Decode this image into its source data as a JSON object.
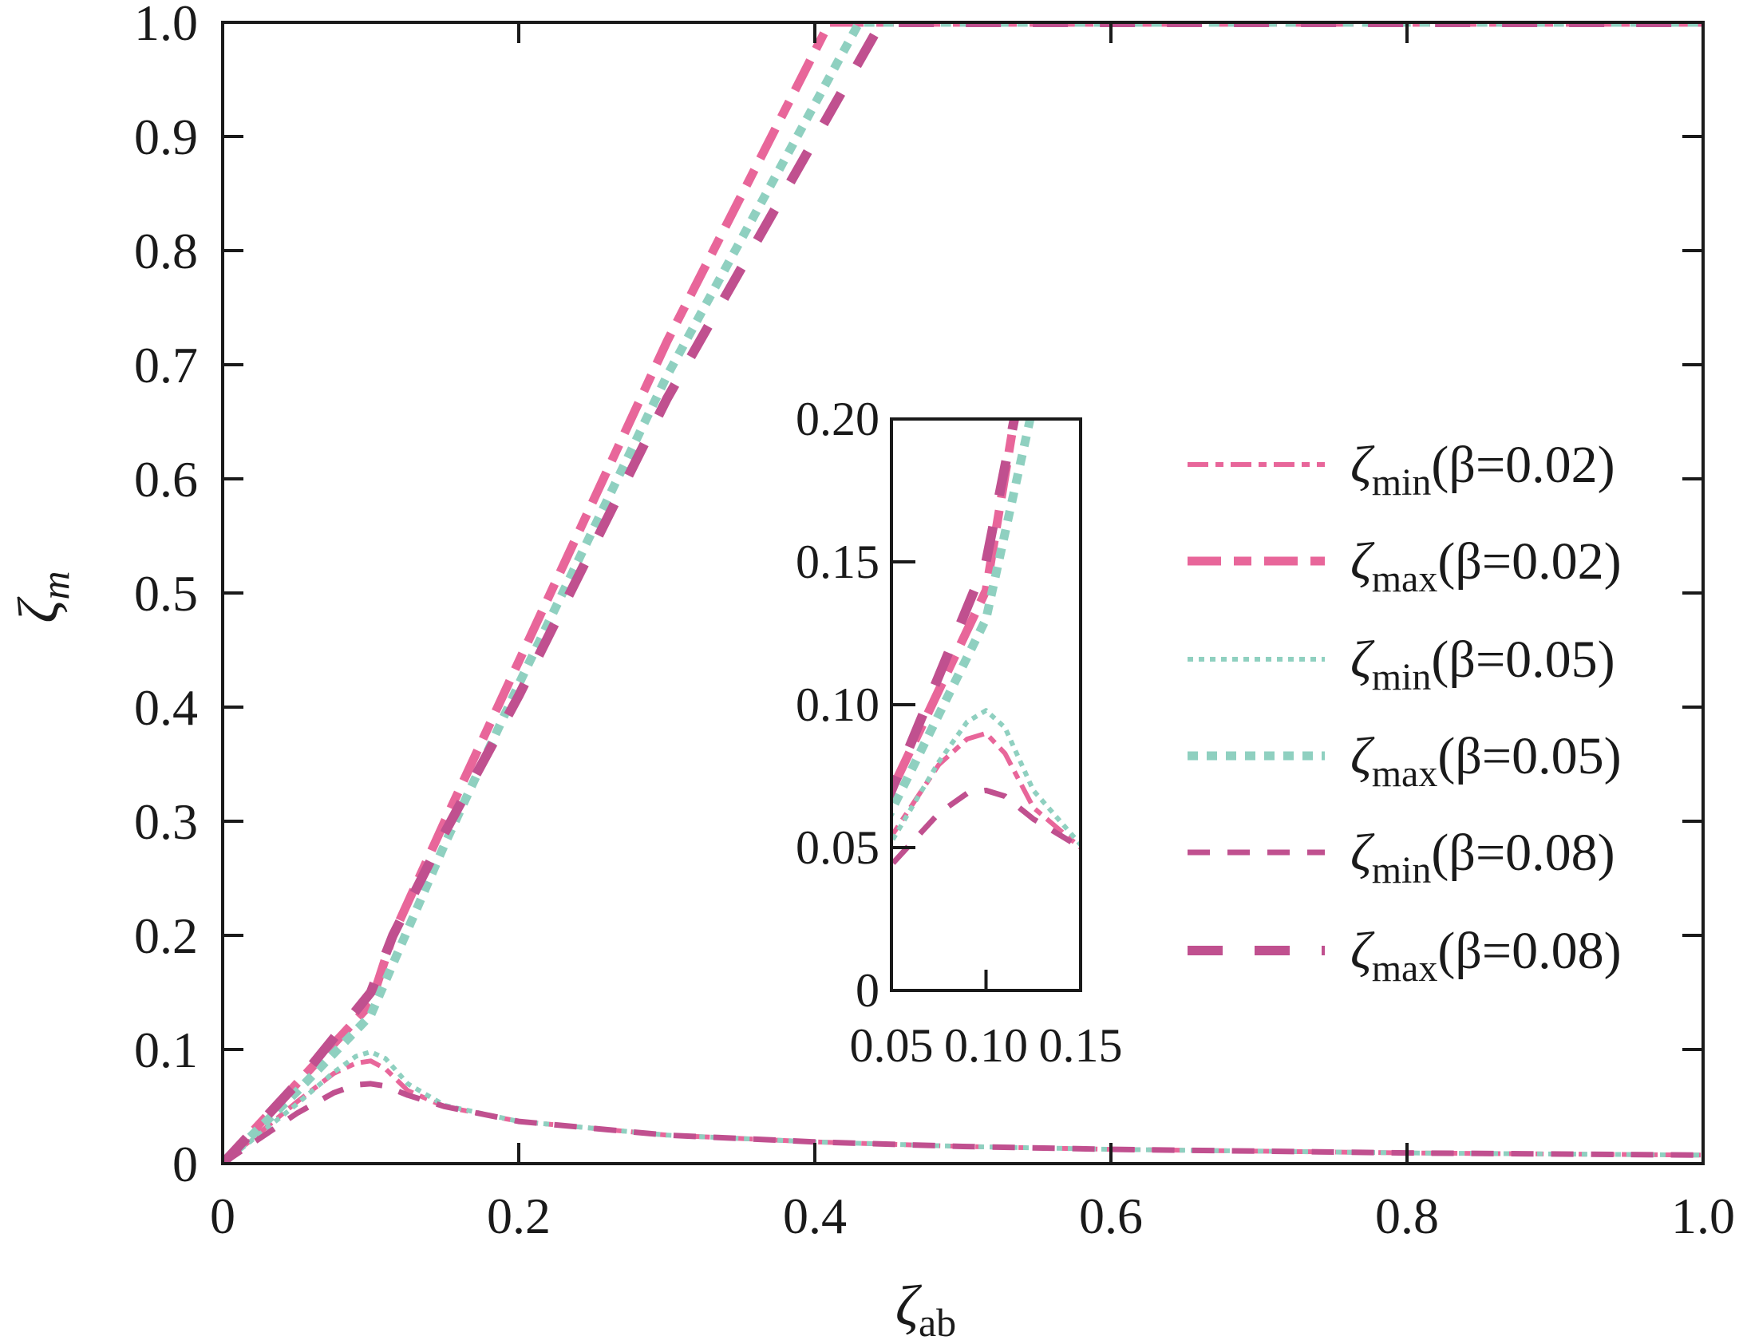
{
  "chart_data": {
    "type": "line",
    "title": "",
    "xlabel": "ζ",
    "xlabel_sub": "ab",
    "ylabel": "ζ",
    "ylabel_sub": "m",
    "xlim": [
      0,
      1.0
    ],
    "ylim": [
      0,
      1.0
    ],
    "grid": false,
    "legend_position": "right",
    "xticks": [
      "0",
      "0.2",
      "0.4",
      "0.6",
      "0.8",
      "1.0"
    ],
    "xtick_values": [
      0,
      0.2,
      0.4,
      0.6,
      0.8,
      1.0
    ],
    "yticks": [
      "0",
      "0.1",
      "0.2",
      "0.3",
      "0.4",
      "0.5",
      "0.6",
      "0.7",
      "0.8",
      "0.9",
      "1.0"
    ],
    "ytick_values": [
      0,
      0.1,
      0.2,
      0.3,
      0.4,
      0.5,
      0.6,
      0.7,
      0.8,
      0.9,
      1.0
    ],
    "series": [
      {
        "name": "ζmin(β=0.02)",
        "symbol": "ζ",
        "sub": "min",
        "param": "(β=0.02)",
        "color": "#e8669a",
        "style": "dashdot",
        "x": [
          0,
          0.025,
          0.05,
          0.075,
          0.09,
          0.1,
          0.11,
          0.125,
          0.15,
          0.2,
          0.3,
          0.4,
          0.5,
          0.6,
          0.8,
          1.0
        ],
        "y": [
          0,
          0.027,
          0.054,
          0.079,
          0.088,
          0.09,
          0.083,
          0.064,
          0.05,
          0.037,
          0.025,
          0.019,
          0.015,
          0.0125,
          0.0094,
          0.0075
        ]
      },
      {
        "name": "ζmax(β=0.02)",
        "symbol": "ζ",
        "sub": "max",
        "param": "(β=0.02)",
        "color": "#e8669a",
        "style": "dashdot-thick",
        "x": [
          0,
          0.05,
          0.1,
          0.115,
          0.15,
          0.2,
          0.3,
          0.41,
          1.0
        ],
        "y": [
          0,
          0.07,
          0.14,
          0.2,
          0.3,
          0.44,
          0.72,
          1.0,
          1.0
        ]
      },
      {
        "name": "ζmin(β=0.05)",
        "symbol": "ζ",
        "sub": "min",
        "param": "(β=0.05)",
        "color": "#8fd0c0",
        "style": "dotted",
        "x": [
          0,
          0.025,
          0.05,
          0.075,
          0.09,
          0.1,
          0.11,
          0.125,
          0.15,
          0.2,
          0.3,
          0.4,
          0.5,
          0.6,
          0.8,
          1.0
        ],
        "y": [
          0,
          0.026,
          0.052,
          0.08,
          0.094,
          0.098,
          0.092,
          0.07,
          0.051,
          0.037,
          0.025,
          0.019,
          0.015,
          0.0125,
          0.0094,
          0.0075
        ]
      },
      {
        "name": "ζmax(β=0.05)",
        "symbol": "ζ",
        "sub": "max",
        "param": "(β=0.05)",
        "color": "#8fd0c0",
        "style": "dotted-thick",
        "x": [
          0,
          0.05,
          0.1,
          0.12,
          0.15,
          0.2,
          0.3,
          0.43,
          1.0
        ],
        "y": [
          0,
          0.063,
          0.13,
          0.19,
          0.28,
          0.42,
          0.69,
          1.0,
          1.0
        ]
      },
      {
        "name": "ζmin(β=0.08)",
        "symbol": "ζ",
        "sub": "min",
        "param": "(β=0.08)",
        "color": "#c0508f",
        "style": "dashed",
        "x": [
          0,
          0.025,
          0.05,
          0.075,
          0.09,
          0.1,
          0.11,
          0.125,
          0.15,
          0.2,
          0.3,
          0.4,
          0.5,
          0.6,
          0.8,
          1.0
        ],
        "y": [
          0,
          0.022,
          0.044,
          0.062,
          0.069,
          0.07,
          0.068,
          0.06,
          0.05,
          0.037,
          0.025,
          0.019,
          0.015,
          0.0125,
          0.0094,
          0.0075
        ]
      },
      {
        "name": "ζmax(β=0.08)",
        "symbol": "ζ",
        "sub": "max",
        "param": "(β=0.08)",
        "color": "#c0508f",
        "style": "dashed-thick",
        "x": [
          0,
          0.05,
          0.1,
          0.115,
          0.15,
          0.2,
          0.3,
          0.445,
          1.0
        ],
        "y": [
          0,
          0.07,
          0.15,
          0.2,
          0.29,
          0.41,
          0.67,
          1.0,
          1.0
        ]
      }
    ],
    "inset": {
      "xlim": [
        0.05,
        0.15
      ],
      "ylim": [
        0,
        0.2
      ],
      "xticks": [
        "0.05",
        "0.10",
        "0.15"
      ],
      "xtick_values": [
        0.05,
        0.1,
        0.15
      ],
      "yticks": [
        "0",
        "0.05",
        "0.10",
        "0.15",
        "0.20"
      ],
      "ytick_values": [
        0,
        0.05,
        0.1,
        0.15,
        0.2
      ]
    }
  }
}
